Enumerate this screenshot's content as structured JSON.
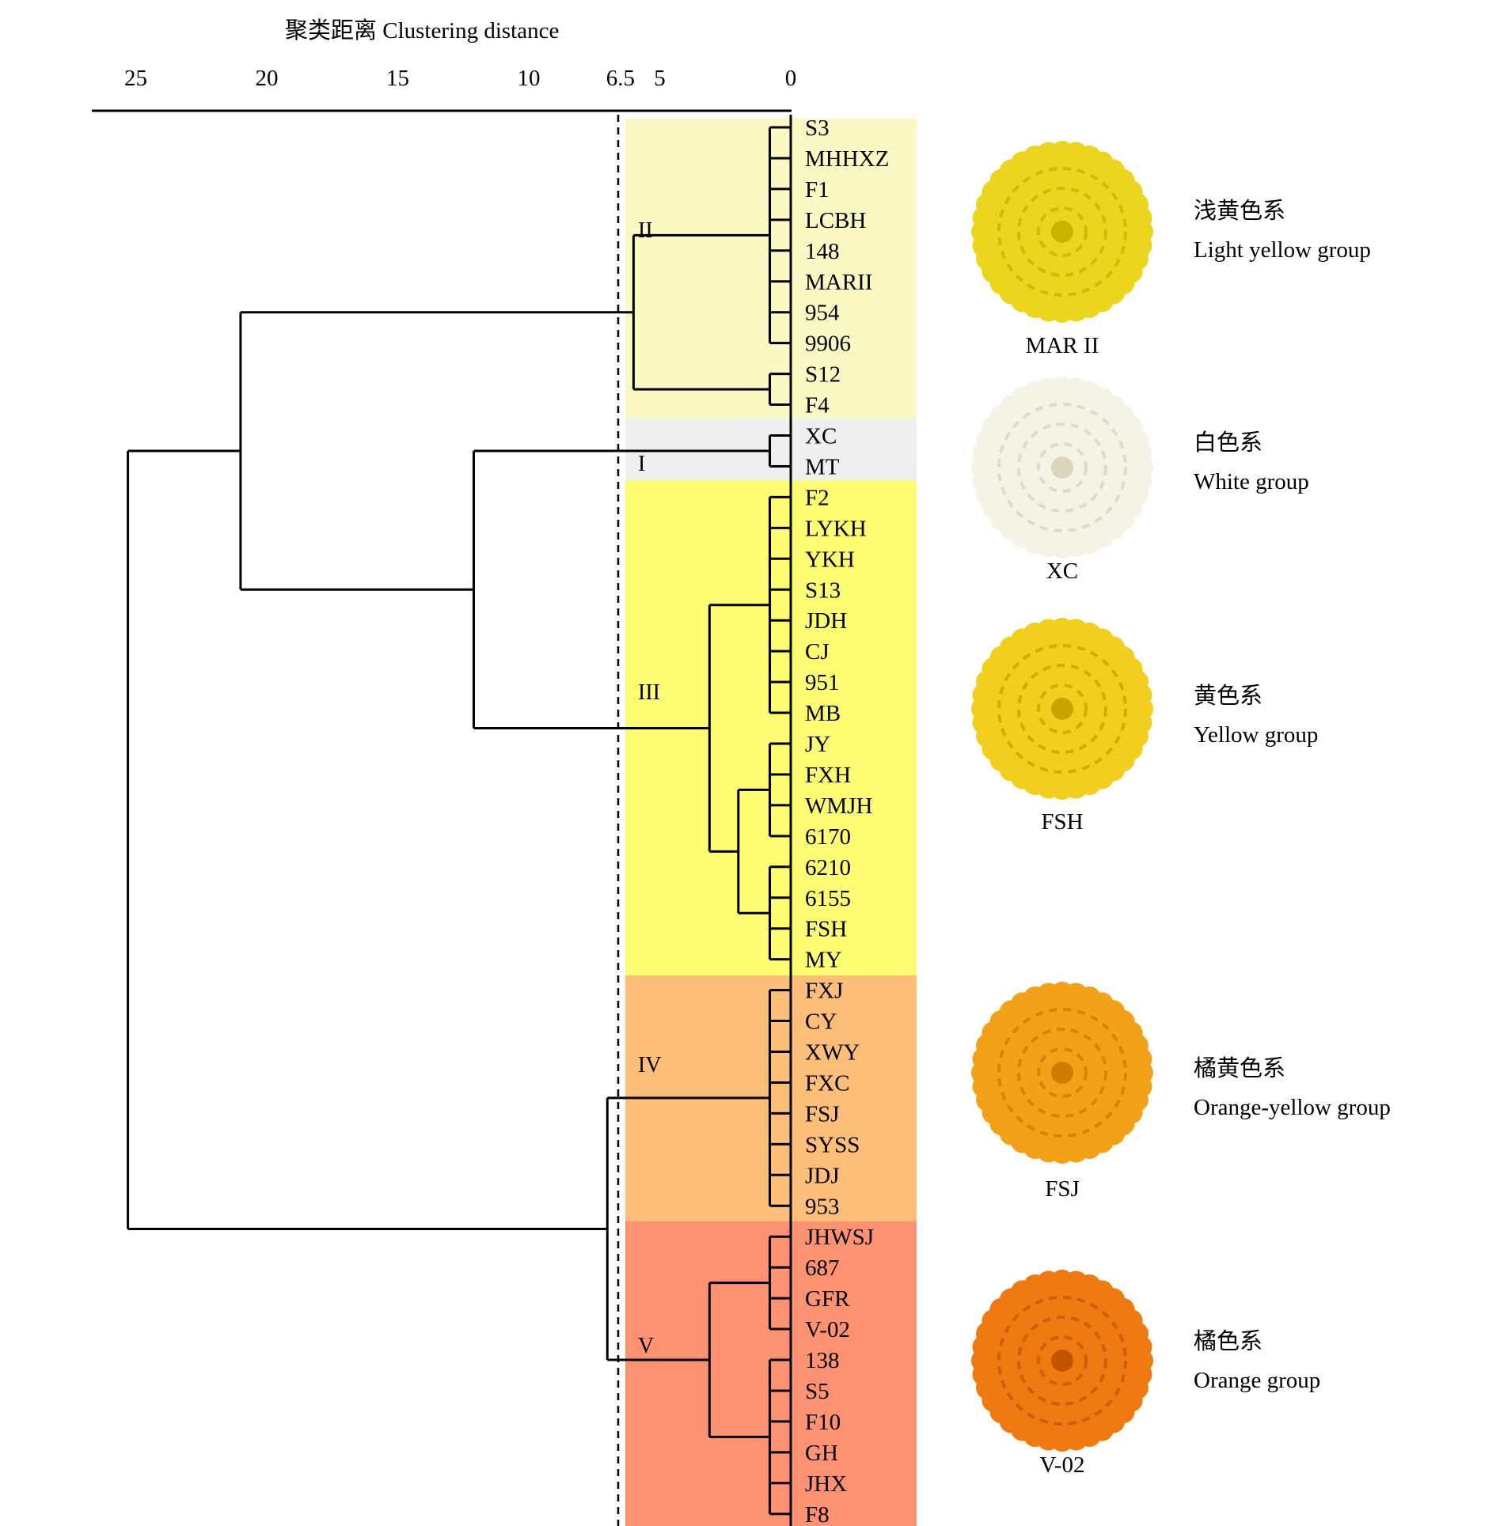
{
  "axis": {
    "title": "聚类距离 Clustering distance",
    "ticks": [
      {
        "label": "25",
        "value": 25
      },
      {
        "label": "20",
        "value": 20
      },
      {
        "label": "15",
        "value": 15
      },
      {
        "label": "10",
        "value": 10
      },
      {
        "label": "6.5",
        "value": 6.5
      },
      {
        "label": "5",
        "value": 5
      },
      {
        "label": "0",
        "value": 0
      }
    ],
    "cutoff": 6.5
  },
  "leaves": [
    "S3",
    "MHHXZ",
    "F1",
    "LCBH",
    "148",
    "MARII",
    "954",
    "9906",
    "S12",
    "F4",
    "XC",
    "MT",
    "F2",
    "LYKH",
    "YKH",
    "S13",
    "JDH",
    "CJ",
    "951",
    "MB",
    "JY",
    "FXH",
    "WMJH",
    "6170",
    "6210",
    "6155",
    "FSH",
    "MY",
    "FXJ",
    "CY",
    "XWY",
    "FXC",
    "FSJ",
    "SYSS",
    "JDJ",
    "953",
    "JHWSJ",
    "687",
    "GFR",
    "V-02",
    "138",
    "S5",
    "F10",
    "GH",
    "JHX",
    "F8"
  ],
  "clusters": [
    {
      "roman": "II",
      "first": 0,
      "last": 9,
      "color": "#FBF9C3"
    },
    {
      "roman": "I",
      "first": 10,
      "last": 11,
      "color": "#EFEFEF"
    },
    {
      "roman": "III",
      "first": 12,
      "last": 27,
      "color": "#FDFC72"
    },
    {
      "roman": "IV",
      "first": 28,
      "last": 35,
      "color": "#FDBE7A"
    },
    {
      "roman": "V",
      "first": 36,
      "last": 45,
      "color": "#FD9272"
    }
  ],
  "groups": [
    {
      "zh": "浅黄色系",
      "en": "Light yellow group",
      "photo": "MAR II",
      "petal": "#EBD51E",
      "petal_dark": "#C9B300"
    },
    {
      "zh": "白色系",
      "en": "White group",
      "photo": "XC",
      "petal": "#F5F3E6",
      "petal_dark": "#D9D6BD"
    },
    {
      "zh": "黄色系",
      "en": "Yellow group",
      "photo": "FSH",
      "petal": "#F2CF1E",
      "petal_dark": "#C9A300"
    },
    {
      "zh": "橘黄色系",
      "en": "Orange-yellow group",
      "photo": "FSJ",
      "petal": "#F4A11A",
      "petal_dark": "#D07A00"
    },
    {
      "zh": "橘色系",
      "en": "Orange group",
      "photo": "V-02",
      "petal": "#F07A12",
      "petal_dark": "#C45500"
    }
  ]
}
